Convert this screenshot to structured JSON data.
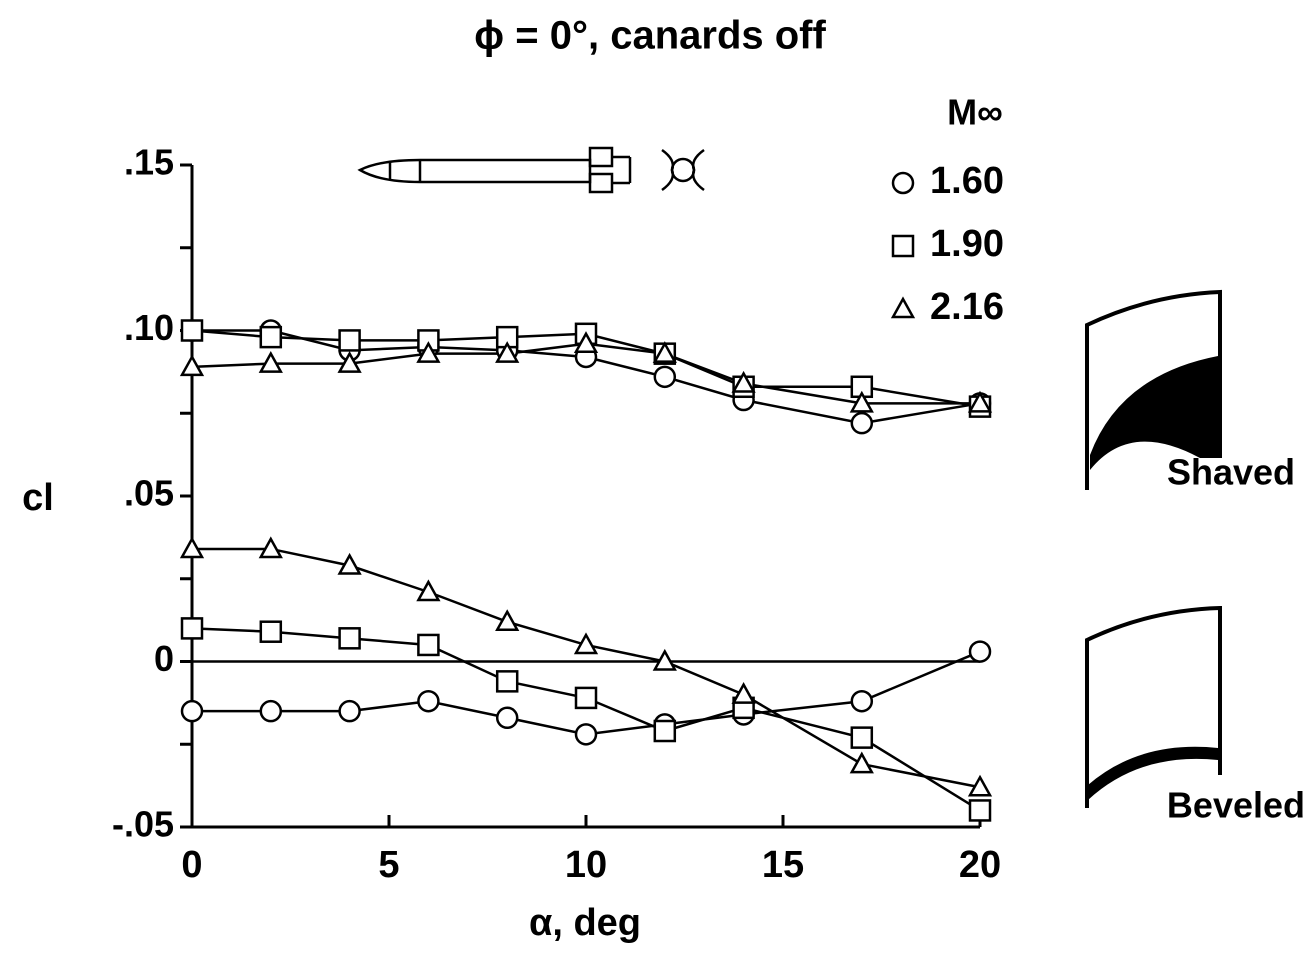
{
  "chart_data": {
    "type": "line",
    "title": "ϕ = 0°, canards off",
    "xlabel": "α, deg",
    "ylabel": "cl",
    "legend_title": "M∞",
    "x": [
      0,
      2,
      4,
      6,
      8,
      10,
      12,
      14,
      17,
      20
    ],
    "xlim": [
      0,
      20
    ],
    "xticks": [
      0,
      5,
      10,
      15,
      20
    ],
    "ylim": [
      -0.05,
      0.15
    ],
    "yticks": [
      {
        "value": -0.05,
        "label": "-.05"
      },
      0,
      {
        "value": 0.05,
        "label": ".05"
      },
      {
        "value": 0.1,
        "label": ".10"
      },
      {
        "value": 0.15,
        "label": ".15"
      }
    ],
    "minor_yticks": [
      -0.025,
      0.025,
      0.075,
      0.125
    ],
    "color": "#000000",
    "groups": [
      {
        "name": "Shaved",
        "series": [
          {
            "name": "1.60",
            "marker": "circle",
            "values": [
              0.1,
              0.1,
              0.094,
              0.095,
              0.094,
              0.092,
              0.086,
              0.079,
              0.072,
              0.078
            ]
          },
          {
            "name": "1.90",
            "marker": "square",
            "values": [
              0.1,
              0.098,
              0.097,
              0.097,
              0.098,
              0.099,
              0.093,
              0.083,
              0.083,
              0.077
            ]
          },
          {
            "name": "2.16",
            "marker": "triangle",
            "values": [
              0.089,
              0.09,
              0.09,
              0.093,
              0.093,
              0.096,
              0.093,
              0.084,
              0.078,
              0.078
            ]
          }
        ]
      },
      {
        "name": "Beveled",
        "series": [
          {
            "marker": "circle",
            "values": [
              -0.015,
              -0.015,
              -0.015,
              -0.012,
              -0.017,
              -0.022,
              -0.019,
              -0.016,
              -0.012,
              0.003
            ]
          },
          {
            "marker": "square",
            "values": [
              0.01,
              0.009,
              0.007,
              0.005,
              -0.006,
              -0.011,
              -0.021,
              -0.014,
              -0.023,
              -0.045
            ]
          },
          {
            "marker": "triangle",
            "values": [
              0.034,
              0.034,
              0.029,
              0.021,
              0.012,
              0.005,
              0.0,
              -0.01,
              -0.031,
              -0.038
            ]
          }
        ]
      }
    ]
  }
}
